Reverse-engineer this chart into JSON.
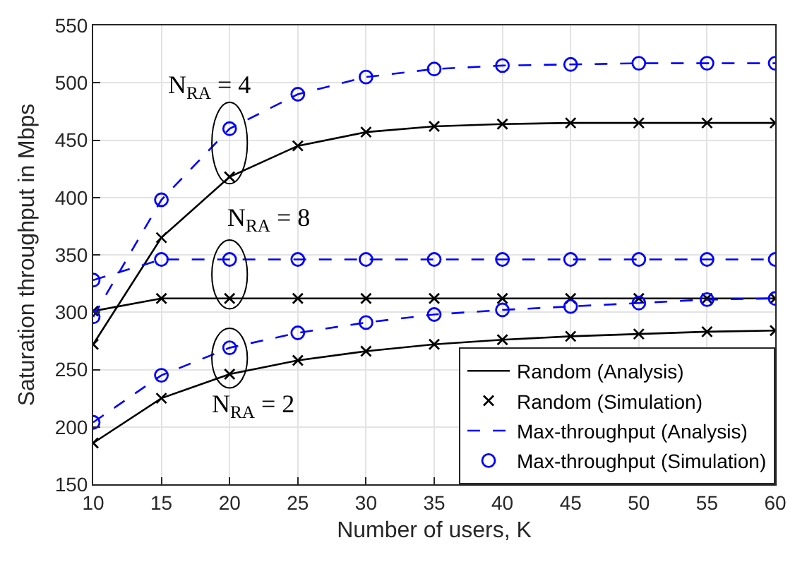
{
  "chart_data": {
    "type": "line",
    "xlabel": "Number of users, K",
    "ylabel": "Saturation throughput in Mbps",
    "x": [
      10,
      15,
      20,
      25,
      30,
      35,
      40,
      45,
      50,
      55,
      60
    ],
    "series": [
      {
        "name": "Random (Analysis)",
        "color": "#000000",
        "line_style": "solid",
        "marker": "none",
        "values": [
          272,
          365,
          418,
          445,
          457,
          462,
          464,
          465,
          465,
          465,
          465
        ]
      },
      {
        "color": "#000000",
        "line_style": "solid",
        "marker": "none",
        "values": [
          301,
          312,
          312,
          312,
          312,
          312,
          312,
          312,
          312,
          312,
          312
        ]
      },
      {
        "color": "#000000",
        "line_style": "solid",
        "marker": "none",
        "values": [
          186,
          225,
          246,
          258,
          266,
          272,
          276,
          279,
          281,
          283,
          284
        ]
      },
      {
        "name": "Random (Simulation)",
        "type": "scatter",
        "color": "#000000",
        "marker": "cross",
        "values": [
          272,
          365,
          418,
          445,
          457,
          462,
          464,
          465,
          465,
          465,
          465
        ]
      },
      {
        "type": "scatter",
        "color": "#000000",
        "marker": "cross",
        "values": [
          301,
          312,
          312,
          312,
          312,
          312,
          312,
          312,
          312,
          312,
          312
        ]
      },
      {
        "type": "scatter",
        "color": "#000000",
        "marker": "cross",
        "values": [
          186,
          225,
          246,
          258,
          266,
          272,
          276,
          279,
          281,
          283,
          284
        ]
      },
      {
        "name": "Max-throughput (Analysis)",
        "color": "#0000ff",
        "line_style": "dashed",
        "marker": "none",
        "values": [
          296,
          398,
          460,
          490,
          505,
          512,
          515,
          516,
          517,
          517,
          517
        ]
      },
      {
        "color": "#0000ff",
        "line_style": "dashed",
        "marker": "none",
        "values": [
          328,
          346,
          346,
          346,
          346,
          346,
          346,
          346,
          346,
          346,
          346
        ]
      },
      {
        "color": "#0000ff",
        "line_style": "dashed",
        "marker": "none",
        "values": [
          204,
          245,
          269,
          282,
          291,
          298,
          302,
          305,
          308,
          311,
          312
        ]
      },
      {
        "name": "Max-throughput (Simulation)",
        "type": "scatter",
        "color": "#0000ff",
        "marker": "circle",
        "values": [
          296,
          398,
          460,
          490,
          505,
          512,
          515,
          516,
          517,
          517,
          517
        ]
      },
      {
        "type": "scatter",
        "color": "#0000ff",
        "marker": "circle",
        "values": [
          328,
          346,
          346,
          346,
          346,
          346,
          346,
          346,
          346,
          346,
          346
        ]
      },
      {
        "type": "scatter",
        "color": "#0000ff",
        "marker": "circle",
        "values": [
          204,
          245,
          269,
          282,
          291,
          298,
          302,
          305,
          308,
          311,
          312
        ]
      }
    ],
    "annotations": [
      "N$_{RA}$ = 4",
      "N$_{RA}$ = 8",
      "N$_{RA}$ = 2"
    ],
    "xlim": [
      10,
      60
    ],
    "xticks": [
      10,
      15,
      20,
      25,
      30,
      35,
      40,
      45,
      50,
      55,
      60
    ],
    "ylim": [
      150,
      550
    ],
    "yticks": [
      150,
      200,
      250,
      300,
      350,
      400,
      450,
      500,
      550
    ],
    "grid": true,
    "legend": "bottom right"
  }
}
